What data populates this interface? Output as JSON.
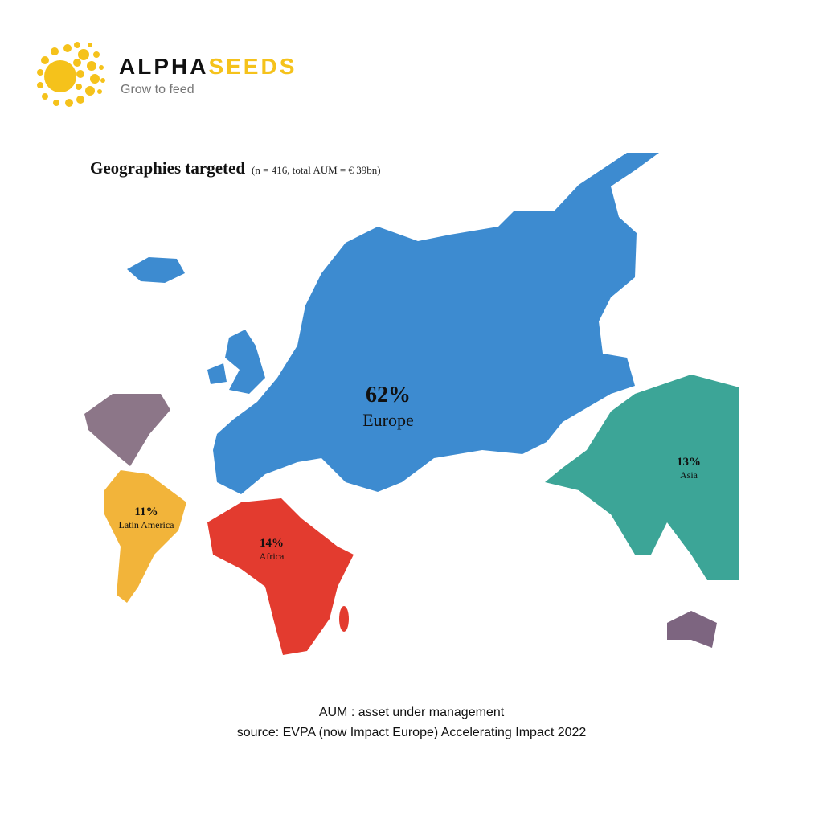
{
  "logo": {
    "name_part1": "ALPHA",
    "name_part2": "SEEDS",
    "tagline": "Grow to feed"
  },
  "map": {
    "title": "Geographies targeted",
    "subtitle": "(n = 416, total AUM = € 39bn)",
    "regions": [
      {
        "share": "62%",
        "name": "Europe"
      },
      {
        "share": "13%",
        "name": "Asia"
      },
      {
        "share": "14%",
        "name": "Africa"
      },
      {
        "share": "11%",
        "name": "Latin America"
      }
    ]
  },
  "footer": {
    "note": "AUM : asset under management",
    "source": "source: EVPA (now Impact Europe) Accelerating Impact 2022"
  }
}
